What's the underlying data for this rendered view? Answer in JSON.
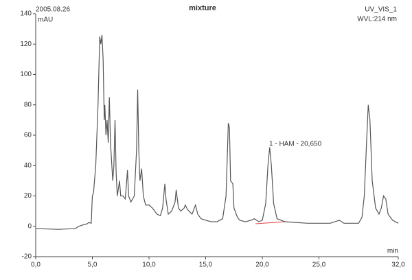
{
  "chart_data": {
    "type": "line",
    "title": "mixture",
    "date": "2005.08.26",
    "channel": "UV_VIS_1",
    "wavelength": "WVL:214 nm",
    "y_label": "mAU",
    "x_label": "min",
    "annotation": "1 - HAM - 20,650",
    "xlim": [
      0,
      32
    ],
    "xticks": [
      {
        "value": 0,
        "label": "0,0"
      },
      {
        "value": 5,
        "label": "5,0"
      },
      {
        "value": 10,
        "label": "10,0"
      },
      {
        "value": 15,
        "label": "15,0"
      },
      {
        "value": 20,
        "label": "20,0"
      },
      {
        "value": 25,
        "label": "25,0"
      },
      {
        "value": 32,
        "label": "32,0"
      }
    ],
    "ylim": [
      -20,
      140
    ],
    "yticks": [
      -20,
      0,
      20,
      40,
      60,
      80,
      100,
      120,
      140
    ],
    "grid": false,
    "color": "#555555",
    "x": [
      0,
      2,
      3.5,
      3.8,
      4.2,
      4.5,
      4.7,
      4.9,
      5.0,
      5.1,
      5.3,
      5.5,
      5.65,
      5.75,
      5.85,
      5.95,
      6.05,
      6.1,
      6.2,
      6.3,
      6.4,
      6.5,
      6.6,
      6.8,
      6.9,
      7.0,
      7.1,
      7.2,
      7.4,
      7.5,
      7.7,
      7.9,
      8.0,
      8.1,
      8.2,
      8.4,
      8.7,
      8.9,
      9.0,
      9.1,
      9.2,
      9.35,
      9.5,
      9.7,
      10.0,
      10.3,
      10.7,
      11.0,
      11.2,
      11.4,
      11.5,
      11.7,
      12.0,
      12.3,
      12.4,
      12.6,
      12.8,
      13.1,
      13.2,
      13.4,
      13.8,
      14.1,
      14.3,
      14.6,
      15.0,
      15.5,
      16.0,
      16.5,
      16.8,
      17.0,
      17.1,
      17.2,
      17.4,
      17.5,
      17.8,
      18.0,
      18.5,
      19.0,
      19.3,
      19.7,
      20.0,
      20.3,
      20.5,
      20.65,
      20.8,
      21.0,
      21.3,
      22.0,
      24.0,
      26.0,
      26.8,
      27.2,
      28.5,
      28.8,
      29.0,
      29.2,
      29.35,
      29.5,
      29.7,
      30.0,
      30.3,
      30.5,
      30.7,
      30.9,
      31.1,
      31.5,
      32.0
    ],
    "values": [
      -1.5,
      -2,
      -1.5,
      0,
      1,
      1.5,
      2.5,
      2,
      20,
      22,
      40,
      80,
      125,
      120,
      126,
      110,
      70,
      80,
      60,
      70,
      55,
      85,
      55,
      30,
      40,
      70,
      35,
      20,
      30,
      20,
      20,
      18,
      27,
      37,
      20,
      16,
      20,
      50,
      90,
      50,
      30,
      38,
      20,
      14,
      14,
      12,
      8,
      7,
      12,
      28,
      18,
      8,
      10,
      16,
      24,
      12,
      10,
      12,
      14,
      11,
      8,
      14,
      8,
      5,
      4,
      3,
      3,
      5,
      20,
      68,
      65,
      30,
      28,
      12,
      6,
      4,
      3,
      4,
      5,
      3,
      4,
      15,
      40,
      52,
      40,
      15,
      5,
      3,
      2,
      2,
      4,
      2,
      2,
      6,
      20,
      55,
      80,
      70,
      30,
      12,
      8,
      12,
      20,
      18,
      8,
      4,
      2
    ]
  }
}
